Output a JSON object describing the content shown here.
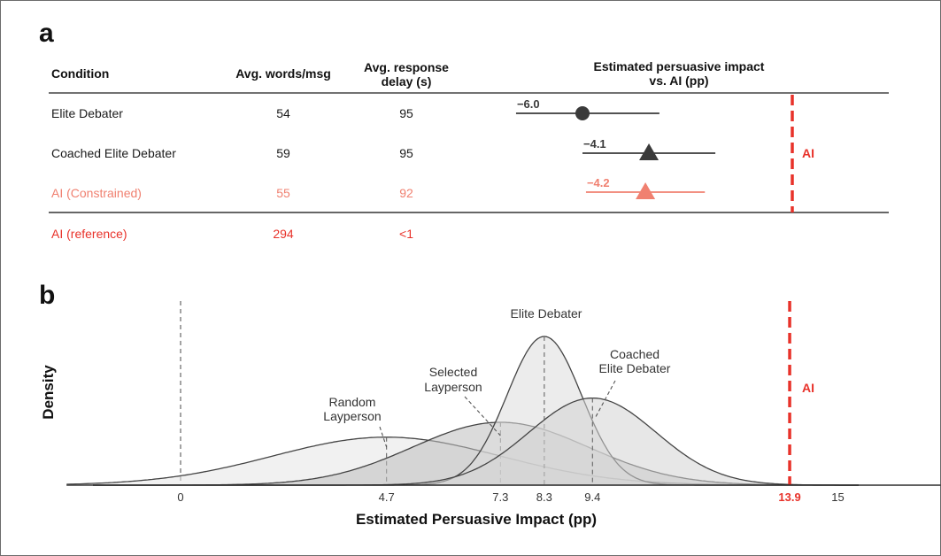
{
  "panel_a": {
    "letter": "a",
    "headers": {
      "condition": "Condition",
      "words": "Avg. words/msg",
      "delay_line1": "Avg. response",
      "delay_line2": "delay (s)",
      "impact_line1": "Estimated persuasive impact",
      "impact_line2": "vs. AI (pp)"
    },
    "rows": [
      {
        "condition": "Elite Debater",
        "words": "54",
        "delay": "95",
        "color": "#1a1a1a"
      },
      {
        "condition": "Coached Elite Debater",
        "words": "59",
        "delay": "95",
        "color": "#1a1a1a"
      },
      {
        "condition": "AI (Constrained)",
        "words": "55",
        "delay": "92",
        "color": "#f08070"
      }
    ],
    "reference_row": {
      "condition": "AI (reference)",
      "words": "294",
      "delay": "<1",
      "color": "#e8322a"
    },
    "ai_line_label": "AI"
  },
  "panel_b": {
    "letter": "b",
    "ai_line_label": "AI"
  },
  "chart_data": [
    {
      "type": "scatter",
      "title": "Estimated persuasive impact vs. AI (pp)",
      "reference": {
        "label": "AI",
        "x": 0
      },
      "series": [
        {
          "name": "Elite Debater",
          "estimate": -6.0,
          "label": "−6.0",
          "ci": [
            -7.9,
            -3.8
          ],
          "marker": "circle",
          "color": "#3a3a3a"
        },
        {
          "name": "Coached Elite Debater",
          "estimate": -4.1,
          "label": "−4.1",
          "ci": [
            -6.0,
            -2.2
          ],
          "marker": "triangle",
          "color": "#3a3a3a"
        },
        {
          "name": "AI (Constrained)",
          "estimate": -4.2,
          "label": "−4.2",
          "ci": [
            -5.9,
            -2.5
          ],
          "marker": "triangle",
          "color": "#f08070"
        }
      ],
      "xlim": [
        -8.5,
        1.5
      ]
    },
    {
      "type": "area",
      "xlabel": "Estimated Persuasive Impact (pp)",
      "ylabel": "Density",
      "xlim": [
        -2.6,
        17.8
      ],
      "x_ticks": [
        {
          "value": 0,
          "label": "0",
          "highlight": false
        },
        {
          "value": 4.7,
          "label": "4.7",
          "highlight": false
        },
        {
          "value": 7.3,
          "label": "7.3",
          "highlight": false
        },
        {
          "value": 8.3,
          "label": "8.3",
          "highlight": false
        },
        {
          "value": 9.4,
          "label": "9.4",
          "highlight": false
        },
        {
          "value": 13.9,
          "label": "13.9",
          "highlight": true
        },
        {
          "value": 15,
          "label": "15",
          "highlight": false
        }
      ],
      "reference": {
        "label": "AI",
        "x": 13.9,
        "color": "#e8322a"
      },
      "series": [
        {
          "name": "Random Layperson",
          "label_lines": [
            "Random",
            "Layperson"
          ],
          "mean": 4.7,
          "sd": 2.6,
          "peak": 0.226,
          "fill": "#e6e6e6"
        },
        {
          "name": "Selected Layperson",
          "label_lines": [
            "Selected",
            "Layperson"
          ],
          "mean": 7.3,
          "sd": 2.0,
          "peak": 0.296,
          "fill": "#bdbdbd"
        },
        {
          "name": "Elite Debater",
          "label_lines": [
            "Elite Debater"
          ],
          "mean": 8.3,
          "sd": 0.85,
          "peak": 0.7,
          "fill": "#dcdcdc"
        },
        {
          "name": "Coached Elite Debater",
          "label_lines": [
            "Coached",
            "Elite Debater"
          ],
          "mean": 9.4,
          "sd": 1.45,
          "peak": 0.41,
          "fill": "#d4d4d4"
        }
      ]
    }
  ]
}
